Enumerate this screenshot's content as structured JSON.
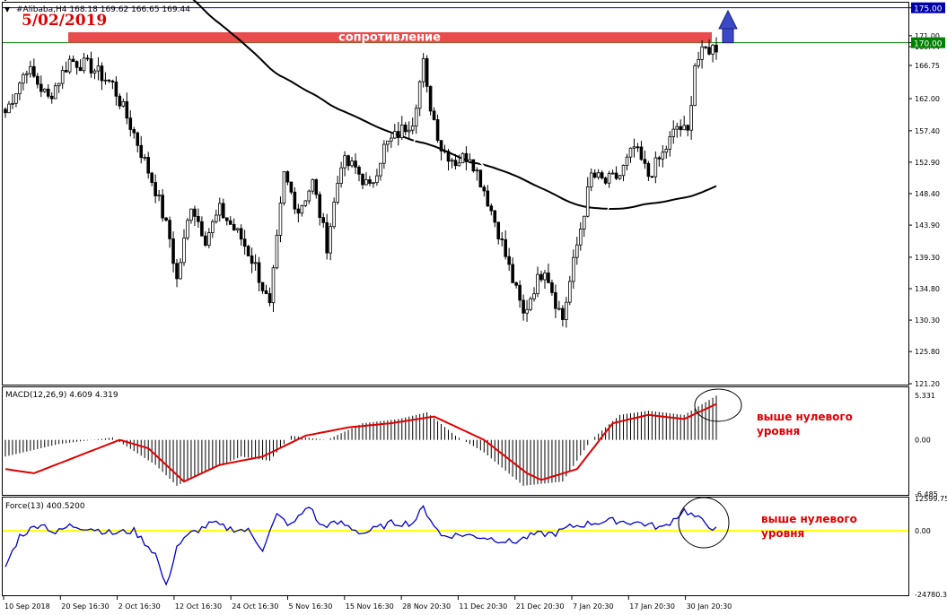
{
  "header": {
    "symbol_line": "#Alibaba,H4  168.18 169.62 166.65 169.44",
    "date": "5/02/2019"
  },
  "colors": {
    "background": "#ffffff",
    "candle": "#000000",
    "ma_slow": "#000000",
    "ma_fast": "#ffffff",
    "resistance_box": "#e84c4c",
    "level_line_blue": "#0000aa",
    "level_line_green": "#008000",
    "arrow": "#3b49c6",
    "macd_signal": "#e00000",
    "force_line": "#0000cc",
    "zero_line": "#ffff00",
    "annotation_text": "#e00000"
  },
  "annotations": {
    "resistance_label": "сопротивление",
    "macd_note": [
      "выше нулевого",
      "уровня"
    ],
    "force_note": [
      "выше нулевого",
      "уровня"
    ]
  },
  "chart_data": [
    {
      "type": "candlestick",
      "panel": "price",
      "ylim": [
        121.2,
        175.6
      ],
      "y_ticks": [
        "175.00",
        "171.00",
        "170.00",
        "169.44",
        "166.75",
        "162.00",
        "157.40",
        "152.90",
        "148.40",
        "143.90",
        "139.30",
        "134.80",
        "130.30",
        "125.80",
        "121.20"
      ],
      "price_labels": [
        {
          "text": "175.00",
          "value": 175.0,
          "style": "blue"
        },
        {
          "text": "170.00",
          "value": 170.0,
          "style": "green"
        }
      ],
      "levels": [
        {
          "value": 175.0,
          "color": "#0000aa"
        },
        {
          "value": 170.0,
          "color": "#008000"
        }
      ],
      "resistance_zone": {
        "from": 170.0,
        "to": 171.5
      },
      "x_labels": [
        "10 Sep 2018",
        "20 Sep 16:30",
        "2 Oct 16:30",
        "12 Oct 16:30",
        "24 Oct 16:30",
        "5 Nov 16:30",
        "15 Nov 16:30",
        "28 Nov 20:30",
        "11 Dec 20:30",
        "21 Dec 20:30",
        "7 Jan 20:30",
        "17 Jan 20:30",
        "30 Jan 20:30"
      ],
      "close_anchors": [
        {
          "bar": 0,
          "close": 160.0
        },
        {
          "bar": 6,
          "close": 166.5
        },
        {
          "bar": 12,
          "close": 162.0
        },
        {
          "bar": 18,
          "close": 167.5
        },
        {
          "bar": 24,
          "close": 166.5
        },
        {
          "bar": 30,
          "close": 164.0
        },
        {
          "bar": 36,
          "close": 157.0
        },
        {
          "bar": 42,
          "close": 149.0
        },
        {
          "bar": 46,
          "close": 142.0
        },
        {
          "bar": 48,
          "close": 136.0
        },
        {
          "bar": 52,
          "close": 147.0
        },
        {
          "bar": 56,
          "close": 142.0
        },
        {
          "bar": 60,
          "close": 146.0
        },
        {
          "bar": 66,
          "close": 142.0
        },
        {
          "bar": 70,
          "close": 138.0
        },
        {
          "bar": 74,
          "close": 132.0
        },
        {
          "bar": 78,
          "close": 151.0
        },
        {
          "bar": 82,
          "close": 146.0
        },
        {
          "bar": 86,
          "close": 150.0
        },
        {
          "bar": 90,
          "close": 141.0
        },
        {
          "bar": 94,
          "close": 153.0
        },
        {
          "bar": 98,
          "close": 152.0
        },
        {
          "bar": 102,
          "close": 149.0
        },
        {
          "bar": 106,
          "close": 155.0
        },
        {
          "bar": 110,
          "close": 157.0
        },
        {
          "bar": 114,
          "close": 159.0
        },
        {
          "bar": 117,
          "close": 167.0
        },
        {
          "bar": 118,
          "close": 163.0
        },
        {
          "bar": 122,
          "close": 155.0
        },
        {
          "bar": 126,
          "close": 153.0
        },
        {
          "bar": 130,
          "close": 154.0
        },
        {
          "bar": 134,
          "close": 149.0
        },
        {
          "bar": 138,
          "close": 143.0
        },
        {
          "bar": 142,
          "close": 136.0
        },
        {
          "bar": 145,
          "close": 131.0
        },
        {
          "bar": 148,
          "close": 135.0
        },
        {
          "bar": 151,
          "close": 138.0
        },
        {
          "bar": 154,
          "close": 133.0
        },
        {
          "bar": 156,
          "close": 130.5
        },
        {
          "bar": 160,
          "close": 141.0
        },
        {
          "bar": 164,
          "close": 151.0
        },
        {
          "bar": 168,
          "close": 150.0
        },
        {
          "bar": 172,
          "close": 151.0
        },
        {
          "bar": 176,
          "close": 155.0
        },
        {
          "bar": 180,
          "close": 151.0
        },
        {
          "bar": 184,
          "close": 154.0
        },
        {
          "bar": 188,
          "close": 158.0
        },
        {
          "bar": 191,
          "close": 157.0
        },
        {
          "bar": 193,
          "close": 167.0
        },
        {
          "bar": 196,
          "close": 169.0
        },
        {
          "bar": 199,
          "close": 169.4
        }
      ]
    },
    {
      "type": "histogram+line",
      "panel": "macd",
      "title": "MACD(12,26,9) 4.609 4.319",
      "ylim": [
        -6.485,
        6.2
      ],
      "y_ticks": [
        "5.331",
        "0.00",
        "-6.485"
      ],
      "macd_anchors": [
        {
          "bar": 0,
          "value": -2.0
        },
        {
          "bar": 15,
          "value": -0.5
        },
        {
          "bar": 30,
          "value": 0.3
        },
        {
          "bar": 42,
          "value": -3.0
        },
        {
          "bar": 48,
          "value": -5.5
        },
        {
          "bar": 55,
          "value": -4.0
        },
        {
          "bar": 66,
          "value": -2.0
        },
        {
          "bar": 74,
          "value": -2.5
        },
        {
          "bar": 80,
          "value": 0.5
        },
        {
          "bar": 90,
          "value": 0.0
        },
        {
          "bar": 100,
          "value": 2.0
        },
        {
          "bar": 110,
          "value": 2.5
        },
        {
          "bar": 118,
          "value": 3.3
        },
        {
          "bar": 126,
          "value": 0.5
        },
        {
          "bar": 134,
          "value": -1.5
        },
        {
          "bar": 145,
          "value": -5.5
        },
        {
          "bar": 156,
          "value": -5.0
        },
        {
          "bar": 164,
          "value": 0.0
        },
        {
          "bar": 172,
          "value": 3.0
        },
        {
          "bar": 180,
          "value": 3.5
        },
        {
          "bar": 190,
          "value": 3.0
        },
        {
          "bar": 199,
          "value": 5.3
        }
      ],
      "signal_anchors": [
        {
          "bar": 0,
          "value": -3.5
        },
        {
          "bar": 8,
          "value": -4.0
        },
        {
          "bar": 20,
          "value": -2.0
        },
        {
          "bar": 32,
          "value": 0.0
        },
        {
          "bar": 40,
          "value": -1.0
        },
        {
          "bar": 50,
          "value": -5.0
        },
        {
          "bar": 60,
          "value": -3.0
        },
        {
          "bar": 72,
          "value": -2.0
        },
        {
          "bar": 84,
          "value": 0.5
        },
        {
          "bar": 96,
          "value": 1.5
        },
        {
          "bar": 108,
          "value": 2.0
        },
        {
          "bar": 120,
          "value": 2.8
        },
        {
          "bar": 134,
          "value": 0.0
        },
        {
          "bar": 146,
          "value": -4.0
        },
        {
          "bar": 150,
          "value": -4.8
        },
        {
          "bar": 160,
          "value": -3.5
        },
        {
          "bar": 170,
          "value": 2.0
        },
        {
          "bar": 180,
          "value": 3.0
        },
        {
          "bar": 190,
          "value": 2.5
        },
        {
          "bar": 199,
          "value": 4.3
        }
      ]
    },
    {
      "type": "line",
      "panel": "force",
      "title": "Force(13) 400.5200",
      "ylim": [
        -24780.3,
        12599.75
      ],
      "y_ticks": [
        "12599.75",
        "0.00",
        "-24780.3"
      ],
      "force_anchors": [
        {
          "bar": 0,
          "value": -14000
        },
        {
          "bar": 4,
          "value": -2000
        },
        {
          "bar": 10,
          "value": 3000
        },
        {
          "bar": 14,
          "value": -1000
        },
        {
          "bar": 18,
          "value": 2000
        },
        {
          "bar": 24,
          "value": 1000
        },
        {
          "bar": 30,
          "value": -1000
        },
        {
          "bar": 36,
          "value": 0
        },
        {
          "bar": 42,
          "value": -9000
        },
        {
          "bar": 45,
          "value": -22000
        },
        {
          "bar": 48,
          "value": -6000
        },
        {
          "bar": 52,
          "value": -1000
        },
        {
          "bar": 58,
          "value": 3000
        },
        {
          "bar": 62,
          "value": 1000
        },
        {
          "bar": 68,
          "value": 0
        },
        {
          "bar": 72,
          "value": -7000
        },
        {
          "bar": 76,
          "value": 6000
        },
        {
          "bar": 80,
          "value": 2000
        },
        {
          "bar": 85,
          "value": 10000
        },
        {
          "bar": 88,
          "value": 2000
        },
        {
          "bar": 94,
          "value": 3000
        },
        {
          "bar": 100,
          "value": -1000
        },
        {
          "bar": 108,
          "value": 3000
        },
        {
          "bar": 114,
          "value": 3000
        },
        {
          "bar": 117,
          "value": 9000
        },
        {
          "bar": 122,
          "value": -2000
        },
        {
          "bar": 128,
          "value": -1500
        },
        {
          "bar": 134,
          "value": -2500
        },
        {
          "bar": 142,
          "value": -4500
        },
        {
          "bar": 148,
          "value": -1500
        },
        {
          "bar": 154,
          "value": -1000
        },
        {
          "bar": 158,
          "value": 1500
        },
        {
          "bar": 164,
          "value": 3000
        },
        {
          "bar": 170,
          "value": 4000
        },
        {
          "bar": 178,
          "value": 3000
        },
        {
          "bar": 184,
          "value": 1000
        },
        {
          "bar": 190,
          "value": 8000
        },
        {
          "bar": 196,
          "value": 3000
        },
        {
          "bar": 199,
          "value": 400
        }
      ]
    }
  ]
}
